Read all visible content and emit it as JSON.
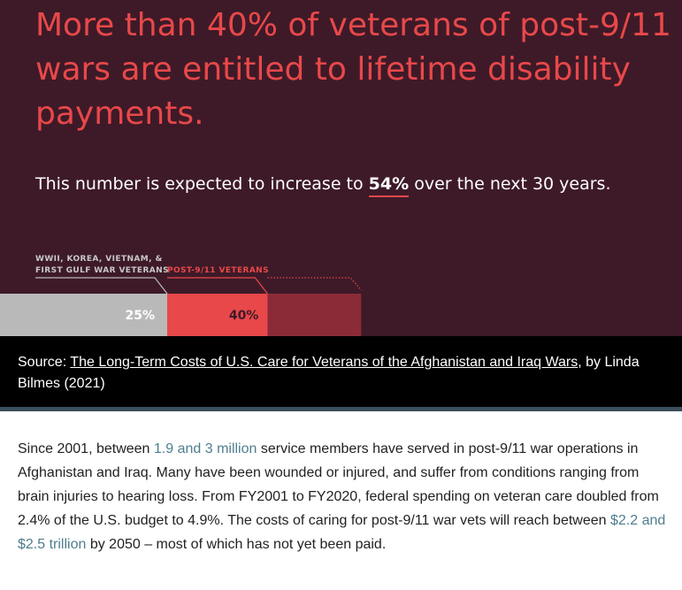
{
  "infographic": {
    "headline": "More than 40% of veterans of post-9/11 wars are entitled to lifetime disability payments.",
    "subhead_prefix": "This number is expected to increase to ",
    "subhead_highlight": "54%",
    "subhead_suffix": " over the next 30 years."
  },
  "chart_data": {
    "type": "bar",
    "orientation": "horizontal-stacked",
    "categories": [
      "WWII, KOREA, VIETNAM, & FIRST GULF WAR VETERANS",
      "POST-9/11 VETERANS"
    ],
    "label_lines": [
      [
        "WWII, KOREA, VIETNAM, &",
        "FIRST GULF WAR VETERANS"
      ],
      [
        "POST-9/11 VETERANS"
      ]
    ],
    "values": [
      25,
      40
    ],
    "value_labels": [
      "25%",
      "40%"
    ],
    "projected_value": 54,
    "colors": {
      "earlier_wars": "#b9b9b9",
      "post_911": "#e8484a",
      "projected": "#8c2b38",
      "background": "#3e1a28"
    }
  },
  "source": {
    "prefix": "Source: ",
    "link_text": "The Long-Term Costs of U.S. Care for Veterans of the Afghanistan and Iraq Wars",
    "suffix": ", by Linda Bilmes (2021)"
  },
  "body": {
    "part1": "Since 2001, between ",
    "link1": "1.9 and 3 million",
    "part2": " service members have served in post-9/11 war operations in Afghanistan and Iraq. Many have been wounded or injured, and suffer from conditions ranging from brain injuries to hearing loss. From FY2001 to FY2020, federal spending on veteran care doubled from 2.4% of the U.S. budget to 4.9%. The costs of caring for post-9/11 war vets will reach between ",
    "link2": "$2.2 and $2.5 trillion",
    "part3": " by 2050 – most of which has not yet been paid."
  }
}
